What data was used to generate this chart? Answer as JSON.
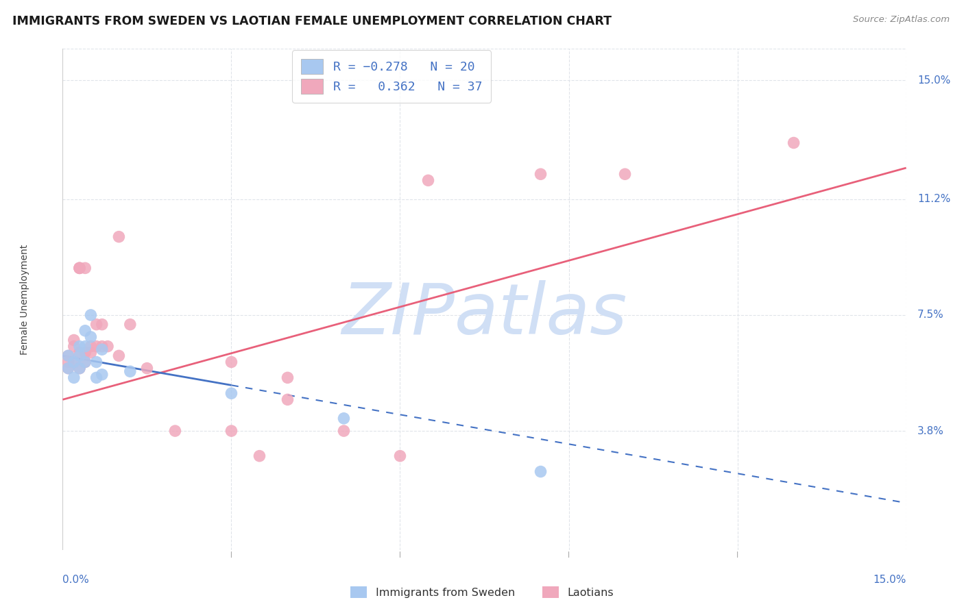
{
  "title": "IMMIGRANTS FROM SWEDEN VS LAOTIAN FEMALE UNEMPLOYMENT CORRELATION CHART",
  "source": "Source: ZipAtlas.com",
  "ylabel": "Female Unemployment",
  "xmin": 0.0,
  "xmax": 0.15,
  "ymin": 0.0,
  "ymax": 0.16,
  "ytick_values": [
    0.038,
    0.075,
    0.112,
    0.15
  ],
  "ytick_labels": [
    "3.8%",
    "7.5%",
    "11.2%",
    "15.0%"
  ],
  "xtick_values": [
    0.0,
    0.03,
    0.06,
    0.09,
    0.12,
    0.15
  ],
  "sweden_color": "#a8c8f0",
  "laotian_color": "#f0a8bc",
  "sweden_line_color": "#4472c4",
  "laotian_line_color": "#e8607a",
  "right_label_color": "#4472c4",
  "watermark_text": "ZIPatlas",
  "watermark_color": "#d0dff5",
  "sweden_line_solid_end": 0.03,
  "laotian_line_y0": 0.048,
  "laotian_line_y1": 0.122,
  "sweden_line_y0": 0.062,
  "sweden_line_y1": 0.015,
  "sweden_points": [
    [
      0.001,
      0.062
    ],
    [
      0.001,
      0.058
    ],
    [
      0.002,
      0.06
    ],
    [
      0.002,
      0.055
    ],
    [
      0.003,
      0.065
    ],
    [
      0.003,
      0.062
    ],
    [
      0.003,
      0.058
    ],
    [
      0.004,
      0.07
    ],
    [
      0.004,
      0.065
    ],
    [
      0.004,
      0.06
    ],
    [
      0.005,
      0.075
    ],
    [
      0.005,
      0.068
    ],
    [
      0.006,
      0.06
    ],
    [
      0.006,
      0.055
    ],
    [
      0.007,
      0.064
    ],
    [
      0.007,
      0.056
    ],
    [
      0.012,
      0.057
    ],
    [
      0.03,
      0.05
    ],
    [
      0.05,
      0.042
    ],
    [
      0.085,
      0.025
    ]
  ],
  "laotian_points": [
    [
      0.001,
      0.06
    ],
    [
      0.001,
      0.062
    ],
    [
      0.001,
      0.058
    ],
    [
      0.002,
      0.067
    ],
    [
      0.002,
      0.065
    ],
    [
      0.002,
      0.06
    ],
    [
      0.003,
      0.09
    ],
    [
      0.003,
      0.09
    ],
    [
      0.003,
      0.09
    ],
    [
      0.003,
      0.063
    ],
    [
      0.003,
      0.058
    ],
    [
      0.004,
      0.09
    ],
    [
      0.004,
      0.063
    ],
    [
      0.004,
      0.06
    ],
    [
      0.005,
      0.065
    ],
    [
      0.005,
      0.063
    ],
    [
      0.006,
      0.072
    ],
    [
      0.006,
      0.065
    ],
    [
      0.007,
      0.072
    ],
    [
      0.007,
      0.065
    ],
    [
      0.008,
      0.065
    ],
    [
      0.01,
      0.062
    ],
    [
      0.01,
      0.1
    ],
    [
      0.012,
      0.072
    ],
    [
      0.015,
      0.058
    ],
    [
      0.02,
      0.038
    ],
    [
      0.03,
      0.06
    ],
    [
      0.03,
      0.038
    ],
    [
      0.035,
      0.03
    ],
    [
      0.04,
      0.055
    ],
    [
      0.04,
      0.048
    ],
    [
      0.05,
      0.038
    ],
    [
      0.06,
      0.03
    ],
    [
      0.065,
      0.118
    ],
    [
      0.085,
      0.12
    ],
    [
      0.1,
      0.12
    ],
    [
      0.13,
      0.13
    ]
  ],
  "grid_color": "#e0e4ea",
  "background_color": "#ffffff",
  "title_fontsize": 12.5,
  "tick_fontsize": 11
}
